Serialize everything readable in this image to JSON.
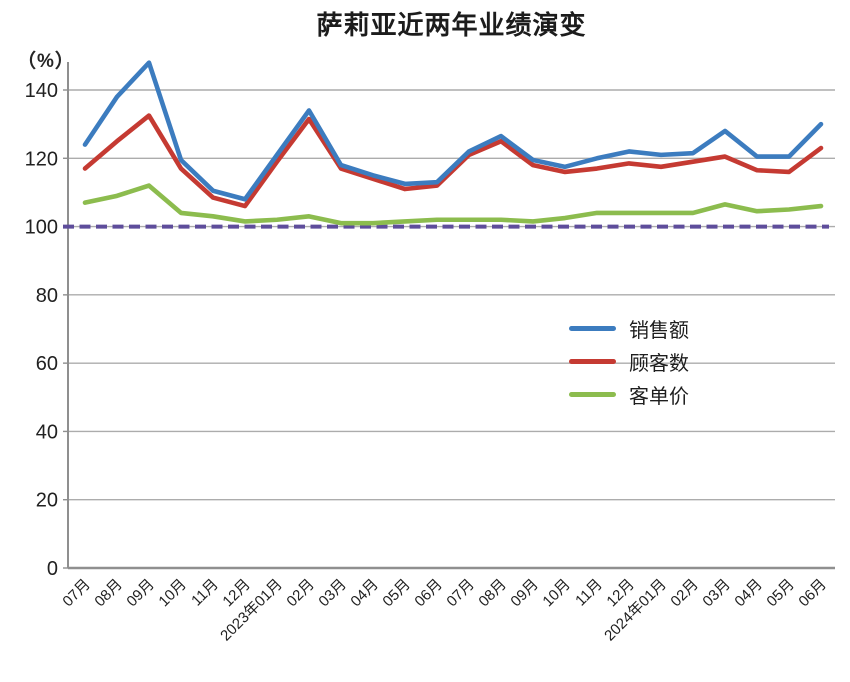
{
  "chart_data": {
    "type": "line",
    "title": "萨莉亚近两年业绩演变",
    "y_unit_label": "（%）",
    "categories": [
      "07月",
      "08月",
      "09月",
      "10月",
      "11月",
      "12月",
      "2023年01月",
      "02月",
      "03月",
      "04月",
      "05月",
      "06月",
      "07月",
      "08月",
      "09月",
      "10月",
      "11月",
      "12月",
      "2024年01月",
      "02月",
      "03月",
      "04月",
      "05月",
      "06月"
    ],
    "series": [
      {
        "name": "销售额",
        "color": "#3C7CBF",
        "values": [
          124,
          138,
          148,
          119.5,
          110.5,
          108,
          121,
          134,
          118,
          115,
          112.5,
          113,
          122,
          126.5,
          119.5,
          117.5,
          120,
          122,
          121,
          121.5,
          128,
          120.5,
          120.5,
          130
        ]
      },
      {
        "name": "顾客数",
        "color": "#C53A32",
        "values": [
          117,
          125,
          132.5,
          117,
          108.5,
          106,
          119,
          131.5,
          117,
          114,
          111,
          112,
          121,
          125,
          118,
          116,
          117,
          118.5,
          117.5,
          119,
          120.5,
          116.5,
          116,
          123
        ]
      },
      {
        "name": "客单价",
        "color": "#8CBC4E",
        "values": [
          107,
          109,
          112,
          104,
          103,
          101.5,
          102,
          103,
          101,
          101,
          101.5,
          102,
          102,
          102,
          101.5,
          102.5,
          104,
          104,
          104,
          104,
          106.5,
          104.5,
          105,
          106
        ]
      }
    ],
    "baseline": {
      "value": 100,
      "color": "#5E4D9B",
      "style": "dashed"
    },
    "yticks": [
      0,
      20,
      40,
      60,
      80,
      100,
      120,
      140
    ],
    "ylim": [
      0,
      148
    ],
    "grid": true,
    "legend_position": "middle-right",
    "colors": {
      "grid": "#ACACAC",
      "axis": "#8F8F8F"
    }
  }
}
